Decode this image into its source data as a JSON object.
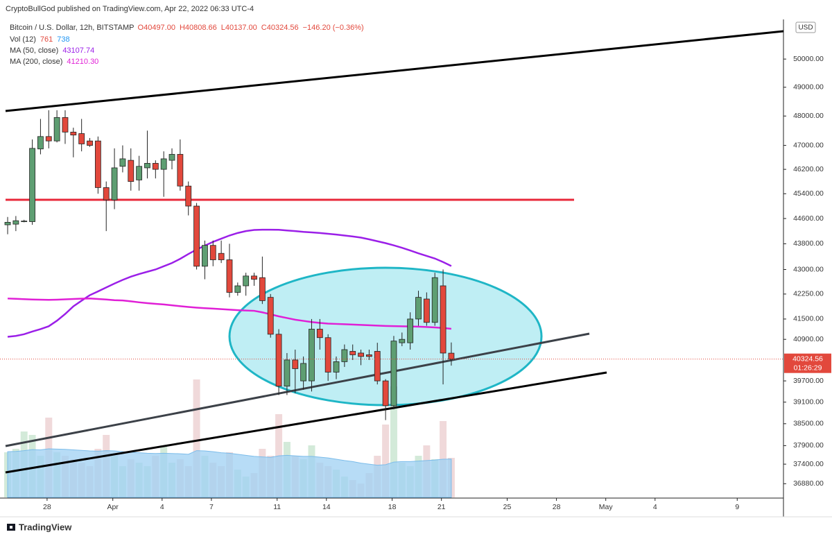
{
  "header": {
    "attribution": "CryptoBullGod published on TradingView.com, Apr 22, 2022 06:33 UTC-4",
    "footer": "TradingView",
    "currency": "USD"
  },
  "chart_data": {
    "type": "candlestick",
    "symbol": "Bitcoin / U.S. Dollar, 12h, BITSTAMP",
    "ohlc_labels": [
      "O40497.00",
      "H40808.66",
      "L40137.00",
      "C40324.56",
      "−146.20 (−0.36%)"
    ],
    "open": [
      44400,
      44420,
      44500,
      44500,
      46880,
      47300,
      47150,
      47950,
      47450,
      47400,
      47150,
      47150,
      45600,
      45200,
      46300,
      46500,
      45850,
      46250,
      46400,
      46200,
      46500,
      46700,
      45650,
      45000,
      43100,
      43750,
      43500,
      43300,
      42300,
      42500,
      42800,
      42750,
      42150,
      41050,
      39550,
      40300,
      39700,
      39700,
      41200,
      40950,
      39950,
      40250,
      40550,
      40500,
      40450,
      40550,
      39700,
      39000,
      40800,
      40800,
      41500,
      42100,
      41400,
      42500,
      40497
    ],
    "high": [
      44650,
      44680,
      44560,
      47200,
      47900,
      48200,
      48200,
      48200,
      47600,
      47900,
      47250,
      47300,
      45800,
      46900,
      47000,
      46900,
      46650,
      47500,
      46500,
      46800,
      46900,
      47200,
      45800,
      45100,
      43900,
      43900,
      43900,
      43800,
      42600,
      42900,
      42900,
      43400,
      42250,
      41200,
      40500,
      40600,
      40400,
      41500,
      41500,
      41050,
      40400,
      40750,
      40750,
      40600,
      40600,
      40800,
      39750,
      41000,
      41100,
      41700,
      42350,
      42300,
      42900,
      43000,
      40808.66
    ],
    "low": [
      44100,
      44200,
      44480,
      44400,
      46700,
      46900,
      47100,
      47050,
      46600,
      46800,
      46950,
      45400,
      44200,
      44900,
      46100,
      45500,
      45500,
      45900,
      45900,
      45300,
      46200,
      45500,
      44700,
      43000,
      42700,
      43100,
      43200,
      42150,
      42200,
      42200,
      42500,
      41950,
      40950,
      39300,
      39300,
      39350,
      39450,
      39400,
      40600,
      39700,
      39750,
      40100,
      40300,
      40150,
      40300,
      39600,
      38600,
      38900,
      40700,
      40600,
      41300,
      41300,
      41300,
      39600,
      40137
    ],
    "close": [
      44480,
      44530,
      44520,
      46900,
      47300,
      47150,
      47950,
      47450,
      47350,
      47050,
      47000,
      45600,
      45200,
      46250,
      46550,
      45800,
      46300,
      46400,
      46200,
      46550,
      46700,
      45650,
      45000,
      43100,
      43750,
      43300,
      43300,
      42300,
      42500,
      42800,
      42700,
      42050,
      41050,
      39550,
      40300,
      40050,
      40200,
      41200,
      40950,
      39950,
      40250,
      40600,
      40450,
      40400,
      40400,
      39700,
      39000,
      40850,
      40900,
      41500,
      42150,
      41400,
      42750,
      40500,
      40324.56
    ],
    "up_color": "#5e9e72",
    "down_color": "#e2483c",
    "volume": {
      "name": "Vol (12)",
      "labels": [
        "761",
        "738"
      ],
      "up_color": "#d3ead9",
      "down_color": "#f0d9da",
      "ma_color": "#9fd0f3",
      "values": [
        868,
        935,
        1268,
        1202,
        801,
        1535,
        868,
        801,
        734,
        668,
        601,
        935,
        1202,
        801,
        601,
        734,
        668,
        601,
        801,
        1001,
        668,
        734,
        601,
        2270,
        801,
        668,
        601,
        868,
        534,
        401,
        467,
        935,
        801,
        1602,
        1068,
        801,
        734,
        1001,
        668,
        601,
        534,
        401,
        334,
        267,
        467,
        801,
        1402,
        2136,
        668,
        601,
        801,
        1001,
        734,
        1469,
        761
      ],
      "ma_values": [
        880,
        885,
        900,
        920,
        915,
        935,
        930,
        925,
        915,
        905,
        895,
        890,
        900,
        895,
        880,
        870,
        860,
        850,
        845,
        850,
        845,
        840,
        830,
        900,
        895,
        880,
        860,
        850,
        830,
        810,
        790,
        780,
        770,
        800,
        810,
        800,
        790,
        790,
        775,
        760,
        735,
        710,
        690,
        660,
        640,
        620,
        630,
        680,
        690,
        690,
        700,
        710,
        720,
        735,
        738
      ]
    },
    "series": [
      {
        "name": "MA (50, close)",
        "label": "43107.74",
        "color": "#9b1fe8",
        "values": [
          40975,
          41000,
          41050,
          41130,
          41200,
          41285,
          41450,
          41650,
          41880,
          42050,
          42215,
          42330,
          42450,
          42570,
          42680,
          42780,
          42860,
          42930,
          43000,
          43100,
          43200,
          43330,
          43480,
          43620,
          43740,
          43860,
          43960,
          44060,
          44140,
          44200,
          44235,
          44245,
          44245,
          44240,
          44220,
          44200,
          44175,
          44160,
          44140,
          44115,
          44090,
          44060,
          44030,
          43995,
          43940,
          43880,
          43820,
          43750,
          43675,
          43590,
          43500,
          43420,
          43340,
          43230,
          43107.74
        ]
      },
      {
        "name": "MA (200, close)",
        "label": "41210.30",
        "color": "#e01fd6",
        "values": [
          42115,
          42105,
          42095,
          42085,
          42080,
          42075,
          42080,
          42090,
          42100,
          42110,
          42115,
          42100,
          42085,
          42065,
          42055,
          42030,
          42000,
          41975,
          41955,
          41935,
          41910,
          41885,
          41860,
          41840,
          41825,
          41810,
          41795,
          41780,
          41765,
          41755,
          41745,
          41700,
          41640,
          41580,
          41530,
          41480,
          41445,
          41410,
          41385,
          41365,
          41355,
          41345,
          41335,
          41325,
          41315,
          41305,
          41295,
          41290,
          41285,
          41280,
          41275,
          41265,
          41250,
          41235,
          41210.3
        ]
      }
    ],
    "log_scale": true,
    "ylim": [
      36520,
      51390
    ],
    "yticks": [
      {
        "value": 36880,
        "label": "36880.00"
      },
      {
        "value": 37400,
        "label": "37400.00"
      },
      {
        "value": 37900,
        "label": "37900.00"
      },
      {
        "value": 38500,
        "label": "38500.00"
      },
      {
        "value": 39100,
        "label": "39100.00"
      },
      {
        "value": 39700,
        "label": "39700.00"
      },
      {
        "value": 40900,
        "label": "40900.00"
      },
      {
        "value": 41500,
        "label": "41500.00"
      },
      {
        "value": 42250,
        "label": "42250.00"
      },
      {
        "value": 43000,
        "label": "43000.00"
      },
      {
        "value": 43800,
        "label": "43800.00"
      },
      {
        "value": 44600,
        "label": "44600.00"
      },
      {
        "value": 45400,
        "label": "45400.00"
      },
      {
        "value": 46200,
        "label": "46200.00"
      },
      {
        "value": 47000,
        "label": "47000.00"
      },
      {
        "value": 48000,
        "label": "48000.00"
      },
      {
        "value": 49000,
        "label": "49000.00"
      },
      {
        "value": 50000,
        "label": "50000.00"
      }
    ],
    "xlim": [
      -0.93,
      94.43
    ],
    "xticks": [
      {
        "value": 4.8,
        "label": "28"
      },
      {
        "value": 12.8,
        "label": "Apr"
      },
      {
        "value": 18.8,
        "label": "4"
      },
      {
        "value": 24.8,
        "label": "7"
      },
      {
        "value": 32.8,
        "label": "11"
      },
      {
        "value": 38.8,
        "label": "14"
      },
      {
        "value": 46.8,
        "label": "18"
      },
      {
        "value": 52.8,
        "label": "21"
      },
      {
        "value": 60.8,
        "label": "25"
      },
      {
        "value": 66.8,
        "label": "28"
      },
      {
        "value": 72.8,
        "label": "May"
      },
      {
        "value": 78.8,
        "label": "4"
      },
      {
        "value": 88.8,
        "label": "9"
      }
    ],
    "price_label": "40324.56",
    "countdown": "01:26:29"
  }
}
